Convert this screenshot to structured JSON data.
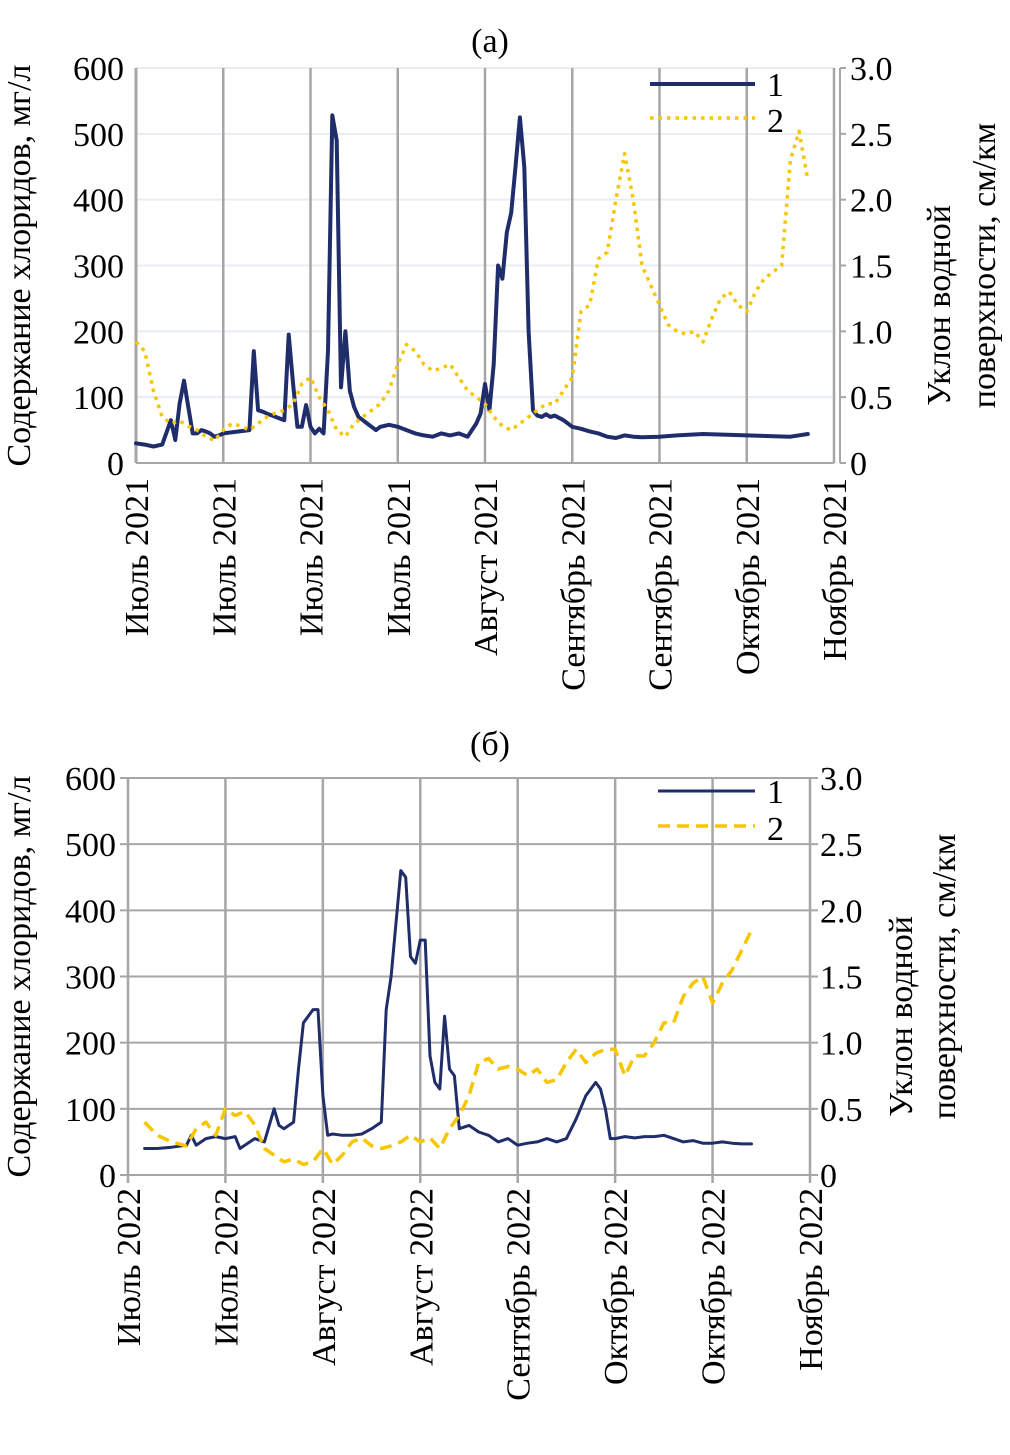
{
  "chart_data": [
    {
      "type": "line",
      "panel_label": "(а)",
      "title": "(а)",
      "ylabel": "Содержание хлоридов, мг/л",
      "y2label_line1": "Уклон водной",
      "y2label_line2": "поверхности, см/км",
      "ylim": [
        0,
        600
      ],
      "y2lim": [
        0,
        3.0
      ],
      "yticks": [
        "0",
        "100",
        "200",
        "300",
        "400",
        "500",
        "600"
      ],
      "y2ticks": [
        "0",
        "0.5",
        "1.0",
        "1.5",
        "2.0",
        "2.5",
        "3.0"
      ],
      "xlim": [
        0,
        8
      ],
      "xticks": [
        "Июль 2021",
        "Июль 2021",
        "Июль 2021",
        "Июль 2021",
        "Август 2021",
        "Сентябрь 2021",
        "Сентябрь 2021",
        "Октябрь 2021",
        "Ноябрь 2021"
      ],
      "grid": {
        "vertical": "dark",
        "horizontal": "light"
      },
      "legend": {
        "placement": "top-right",
        "entries": [
          "1",
          "2"
        ]
      },
      "series": [
        {
          "name": "1",
          "axis": "left",
          "style": "solid",
          "color": "#1f2d6b",
          "x": [
            0,
            0.1,
            0.2,
            0.3,
            0.4,
            0.45,
            0.5,
            0.55,
            0.6,
            0.65,
            0.7,
            0.75,
            0.8,
            0.85,
            0.9,
            0.95,
            1.0,
            1.3,
            1.35,
            1.4,
            1.45,
            1.5,
            1.6,
            1.7,
            1.75,
            1.8,
            1.85,
            1.9,
            1.95,
            2.0,
            2.05,
            2.1,
            2.15,
            2.2,
            2.25,
            2.3,
            2.35,
            2.4,
            2.45,
            2.5,
            2.55,
            2.6,
            2.65,
            2.7,
            2.75,
            2.8,
            2.9,
            3.0,
            3.1,
            3.2,
            3.3,
            3.4,
            3.5,
            3.6,
            3.7,
            3.8,
            3.9,
            3.95,
            4.0,
            4.05,
            4.1,
            4.15,
            4.2,
            4.25,
            4.3,
            4.35,
            4.4,
            4.45,
            4.5,
            4.55,
            4.6,
            4.65,
            4.7,
            4.75,
            4.8,
            4.9,
            5.0,
            5.1,
            5.2,
            5.3,
            5.4,
            5.5,
            5.6,
            5.7,
            5.8,
            6.0,
            6.2,
            6.5,
            7.0,
            7.5,
            7.7
          ],
          "values": [
            30,
            28,
            25,
            28,
            65,
            35,
            90,
            125,
            85,
            45,
            45,
            50,
            48,
            45,
            40,
            42,
            45,
            50,
            170,
            80,
            78,
            75,
            70,
            65,
            195,
            120,
            55,
            55,
            88,
            55,
            45,
            52,
            45,
            170,
            528,
            490,
            115,
            200,
            110,
            85,
            70,
            65,
            60,
            55,
            50,
            55,
            58,
            55,
            50,
            45,
            42,
            40,
            45,
            42,
            45,
            40,
            60,
            75,
            120,
            80,
            150,
            300,
            280,
            350,
            380,
            450,
            525,
            450,
            200,
            80,
            72,
            70,
            74,
            70,
            72,
            65,
            55,
            52,
            48,
            45,
            40,
            38,
            42,
            40,
            39,
            40,
            42,
            44,
            42,
            40,
            44
          ]
        },
        {
          "name": "2",
          "axis": "right",
          "style": "dotted",
          "color": "#f7c600",
          "x": [
            0,
            0.1,
            0.2,
            0.3,
            0.4,
            0.5,
            0.6,
            0.7,
            0.8,
            0.9,
            1.0,
            1.1,
            1.2,
            1.3,
            1.4,
            1.5,
            1.6,
            1.7,
            1.8,
            1.9,
            2.0,
            2.1,
            2.2,
            2.3,
            2.4,
            2.5,
            2.6,
            2.7,
            2.8,
            2.9,
            3.0,
            3.1,
            3.2,
            3.3,
            3.4,
            3.5,
            3.6,
            3.7,
            3.8,
            3.9,
            4.0,
            4.1,
            4.2,
            4.3,
            4.4,
            4.5,
            4.6,
            4.7,
            4.8,
            4.9,
            5.0,
            5.1,
            5.2,
            5.3,
            5.4,
            5.5,
            5.6,
            5.7,
            5.8,
            5.9,
            6.0,
            6.1,
            6.2,
            6.3,
            6.4,
            6.5,
            6.6,
            6.7,
            6.8,
            6.9,
            7.0,
            7.1,
            7.2,
            7.3,
            7.4,
            7.5,
            7.6,
            7.7
          ],
          "values": [
            0.92,
            0.85,
            0.55,
            0.35,
            0.3,
            0.32,
            0.28,
            0.25,
            0.2,
            0.17,
            0.25,
            0.3,
            0.28,
            0.25,
            0.3,
            0.35,
            0.38,
            0.4,
            0.45,
            0.6,
            0.65,
            0.5,
            0.4,
            0.25,
            0.2,
            0.3,
            0.35,
            0.4,
            0.45,
            0.55,
            0.75,
            0.9,
            0.85,
            0.75,
            0.7,
            0.72,
            0.75,
            0.65,
            0.55,
            0.5,
            0.45,
            0.35,
            0.28,
            0.25,
            0.3,
            0.35,
            0.4,
            0.45,
            0.45,
            0.55,
            0.65,
            1.15,
            1.2,
            1.55,
            1.6,
            2.0,
            2.35,
            2.0,
            1.5,
            1.35,
            1.2,
            1.05,
            1.0,
            0.98,
            1.0,
            0.92,
            1.1,
            1.25,
            1.3,
            1.2,
            1.15,
            1.3,
            1.4,
            1.45,
            1.5,
            2.3,
            2.52,
            2.15
          ]
        }
      ]
    },
    {
      "type": "line",
      "panel_label": "(б)",
      "title": "(б)",
      "ylabel": "Содержание хлоридов, мг/л",
      "y2label_line1": "Уклон водной",
      "y2label_line2": "поверхности, см/км",
      "ylim": [
        0,
        600
      ],
      "y2lim": [
        0,
        3.0
      ],
      "yticks": [
        "0",
        "100",
        "200",
        "300",
        "400",
        "500",
        "600"
      ],
      "y2ticks": [
        "0",
        "0.5",
        "1.0",
        "1.5",
        "2.0",
        "2.5",
        "3.0"
      ],
      "xlim": [
        0,
        7
      ],
      "xticks": [
        "Июль 2022",
        "Июль 2022",
        "Август 2022",
        "Август 2022",
        "Сентябрь 2022",
        "Октябрь 2022",
        "Октябрь 2022",
        "Ноябрь 2022"
      ],
      "grid": {
        "vertical": "gray",
        "horizontal": "gray"
      },
      "legend": {
        "placement": "top-right",
        "entries": [
          "1",
          "2"
        ]
      },
      "series": [
        {
          "name": "1",
          "axis": "left",
          "style": "solid",
          "color": "#1f2d6b",
          "x": [
            0.17,
            0.3,
            0.45,
            0.6,
            0.65,
            0.7,
            0.8,
            0.9,
            1.0,
            1.1,
            1.15,
            1.3,
            1.4,
            1.5,
            1.55,
            1.6,
            1.7,
            1.75,
            1.8,
            1.9,
            1.95,
            2.0,
            2.05,
            2.1,
            2.2,
            2.3,
            2.4,
            2.5,
            2.6,
            2.65,
            2.7,
            2.8,
            2.85,
            2.9,
            2.95,
            3.0,
            3.05,
            3.1,
            3.15,
            3.2,
            3.25,
            3.3,
            3.35,
            3.4,
            3.5,
            3.6,
            3.7,
            3.8,
            3.9,
            4.0,
            4.1,
            4.2,
            4.3,
            4.4,
            4.5,
            4.6,
            4.7,
            4.8,
            4.85,
            4.9,
            4.95,
            5.0,
            5.1,
            5.2,
            5.3,
            5.4,
            5.5,
            5.6,
            5.7,
            5.8,
            5.9,
            6.0,
            6.1,
            6.2,
            6.3,
            6.4
          ],
          "values": [
            40,
            40,
            42,
            45,
            60,
            45,
            55,
            58,
            55,
            58,
            40,
            55,
            50,
            100,
            75,
            70,
            80,
            160,
            230,
            250,
            250,
            120,
            60,
            62,
            60,
            60,
            62,
            70,
            80,
            250,
            300,
            460,
            450,
            330,
            320,
            355,
            355,
            180,
            140,
            130,
            240,
            160,
            150,
            70,
            75,
            65,
            60,
            50,
            55,
            45,
            48,
            50,
            55,
            50,
            55,
            85,
            120,
            140,
            130,
            100,
            55,
            55,
            58,
            56,
            58,
            58,
            60,
            55,
            50,
            52,
            48,
            48,
            50,
            48,
            47,
            47
          ]
        },
        {
          "name": "2",
          "axis": "right",
          "style": "dashed",
          "color": "#f7c600",
          "x": [
            0.17,
            0.3,
            0.45,
            0.6,
            0.7,
            0.8,
            0.9,
            1.0,
            1.1,
            1.2,
            1.3,
            1.4,
            1.5,
            1.6,
            1.7,
            1.8,
            1.9,
            2.0,
            2.1,
            2.2,
            2.3,
            2.4,
            2.5,
            2.6,
            2.7,
            2.8,
            2.9,
            3.0,
            3.1,
            3.2,
            3.3,
            3.4,
            3.5,
            3.6,
            3.7,
            3.8,
            3.9,
            4.0,
            4.1,
            4.2,
            4.3,
            4.4,
            4.5,
            4.6,
            4.7,
            4.8,
            4.9,
            5.0,
            5.1,
            5.2,
            5.3,
            5.4,
            5.5,
            5.6,
            5.7,
            5.8,
            5.9,
            6.0,
            6.1,
            6.2,
            6.3,
            6.4
          ],
          "values": [
            0.4,
            0.3,
            0.25,
            0.22,
            0.35,
            0.4,
            0.3,
            0.5,
            0.45,
            0.48,
            0.38,
            0.2,
            0.15,
            0.1,
            0.12,
            0.08,
            0.1,
            0.2,
            0.08,
            0.15,
            0.25,
            0.28,
            0.22,
            0.2,
            0.22,
            0.25,
            0.3,
            0.25,
            0.28,
            0.2,
            0.35,
            0.45,
            0.6,
            0.85,
            0.88,
            0.8,
            0.82,
            0.8,
            0.75,
            0.8,
            0.7,
            0.72,
            0.85,
            0.95,
            0.85,
            0.92,
            0.95,
            0.95,
            0.75,
            0.9,
            0.9,
            1.0,
            1.15,
            1.15,
            1.35,
            1.45,
            1.5,
            1.3,
            1.45,
            1.55,
            1.7,
            1.85
          ]
        }
      ]
    }
  ]
}
